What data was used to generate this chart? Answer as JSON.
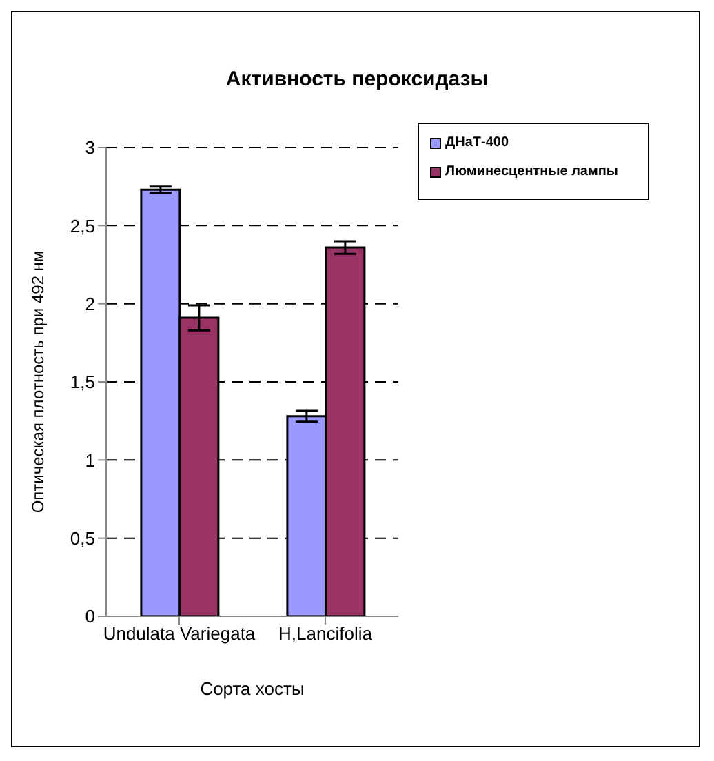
{
  "chart_data": {
    "type": "bar",
    "title": "Активность пероксидазы",
    "xlabel": "Сорта хосты",
    "ylabel": "Оптическая плотность при 492 нм",
    "categories": [
      "Undulata Variegata",
      "H,Lancifolia"
    ],
    "series": [
      {
        "name": "ДНаТ-400",
        "color": "#9999ff",
        "values": [
          2.73,
          1.28
        ],
        "errors": [
          0.02,
          0.035
        ]
      },
      {
        "name": "Люминесцентные лампы",
        "color": "#993366",
        "values": [
          1.91,
          2.36
        ],
        "errors": [
          0.08,
          0.04
        ]
      }
    ],
    "ylim": [
      0,
      3
    ],
    "yticks": [
      0,
      {
        "value": 0.5,
        "label": "0,5"
      },
      1,
      {
        "value": 1.5,
        "label": "1,5"
      },
      2,
      {
        "value": 2.5,
        "label": "2,5"
      },
      3
    ],
    "grid": "y",
    "legend": "top right"
  }
}
